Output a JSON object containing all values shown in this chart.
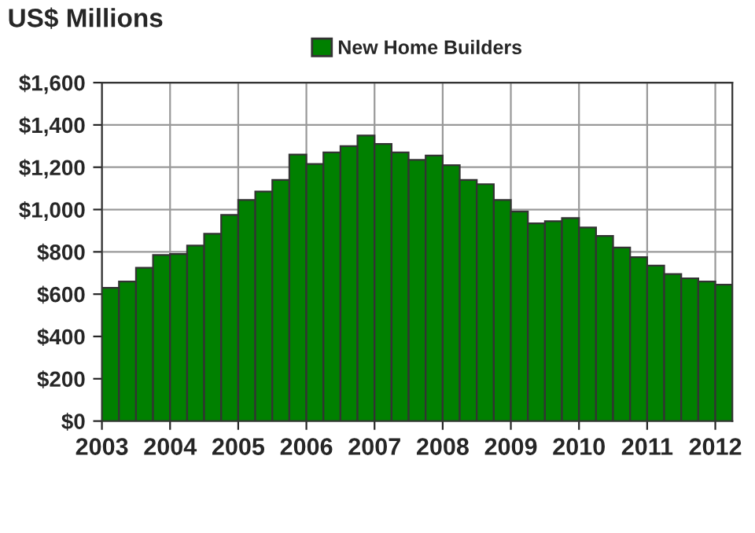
{
  "chart_data": {
    "type": "bar",
    "title": "US$ Millions",
    "x": [
      2003.125,
      2003.375,
      2003.625,
      2003.875,
      2004.125,
      2004.375,
      2004.625,
      2004.875,
      2005.125,
      2005.375,
      2005.625,
      2005.875,
      2006.125,
      2006.375,
      2006.625,
      2006.875,
      2007.125,
      2007.375,
      2007.625,
      2007.875,
      2008.125,
      2008.375,
      2008.625,
      2008.875,
      2009.125,
      2009.375,
      2009.625,
      2009.875,
      2010.125,
      2010.375,
      2010.625,
      2010.875,
      2011.125,
      2011.375,
      2011.625,
      2011.875,
      2012.125
    ],
    "series": [
      {
        "name": "New Home Builders",
        "color": "#008000",
        "values": [
          630,
          660,
          725,
          785,
          790,
          830,
          885,
          975,
          1045,
          1085,
          1140,
          1260,
          1215,
          1270,
          1300,
          1350,
          1310,
          1270,
          1235,
          1255,
          1210,
          1140,
          1120,
          1045,
          990,
          935,
          945,
          960,
          915,
          875,
          820,
          775,
          735,
          695,
          675,
          660,
          645
        ]
      }
    ],
    "xlim": [
      2003,
      2012.25
    ],
    "xticks": [
      2003,
      2004,
      2005,
      2006,
      2007,
      2008,
      2009,
      2010,
      2011,
      2012
    ],
    "ylim": [
      0,
      1600
    ],
    "yticks": [
      {
        "value": 0,
        "label": "$0"
      },
      {
        "value": 200,
        "label": "$200"
      },
      {
        "value": 400,
        "label": "$400"
      },
      {
        "value": 600,
        "label": "$600"
      },
      {
        "value": 800,
        "label": "$800"
      },
      {
        "value": 1000,
        "label": "$1,000"
      },
      {
        "value": 1200,
        "label": "$1,200"
      },
      {
        "value": 1400,
        "label": "$1,400"
      },
      {
        "value": 1600,
        "label": "$1,600"
      }
    ],
    "grid": true,
    "legend": "top"
  }
}
